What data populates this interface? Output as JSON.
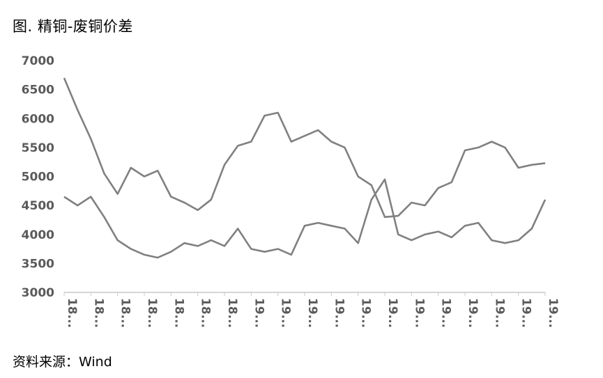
{
  "title": "图. 精铜-废铜价差",
  "source": "资料来源：Wind",
  "chart_data": {
    "type": "line",
    "title": "图. 精铜-废铜价差",
    "xlabel": "",
    "ylabel": "",
    "ylim": [
      3000,
      7000
    ],
    "yticks": [
      3000,
      3500,
      4000,
      4500,
      5000,
      5500,
      6000,
      6500,
      7000
    ],
    "ytick_labels": [
      "3000",
      "3500",
      "4000",
      "4500",
      "5000",
      "5500",
      "6000",
      "6500",
      "7000"
    ],
    "xtick_labels": [
      "18...",
      "18...",
      "18...",
      "18...",
      "18...",
      "18...",
      "18...",
      "19...",
      "19...",
      "19...",
      "19...",
      "19...",
      "19...",
      "19...",
      "19...",
      "19...",
      "19...",
      "19...",
      "19..."
    ],
    "grid": false,
    "legend": "none",
    "line_color": "#808080",
    "series": [
      {
        "x": [
          0,
          0.5,
          1,
          1.5,
          2,
          2.5,
          3,
          3.5,
          4,
          4.5,
          5,
          5.5,
          6,
          6.5,
          7,
          7.5,
          8,
          8.5,
          9,
          9.5,
          10,
          10.5,
          11,
          11.5,
          12,
          12.5,
          13,
          13.5,
          14,
          14.5,
          15,
          15.5,
          16,
          16.5,
          17,
          17.5,
          18
        ],
        "values": [
          6700,
          6150,
          5650,
          5050,
          4700,
          5150,
          5000,
          5100,
          4650,
          4550,
          4420,
          4600,
          5200,
          5530,
          5600,
          6050,
          6100,
          5600,
          5700,
          5800,
          5600,
          5500,
          5000,
          4850,
          4300,
          4320,
          4550,
          4500,
          4800,
          4900,
          5450,
          5500,
          5600,
          5500,
          5150,
          5200,
          5230
        ]
      },
      {
        "x": [
          0,
          0.5,
          1,
          1.5,
          2,
          2.5,
          3,
          3.5,
          4,
          4.5,
          5,
          5.5,
          6,
          6.5,
          7,
          7.5,
          8,
          8.5,
          9,
          9.5,
          10,
          10.5,
          11,
          11.5,
          12,
          12.5,
          13,
          13.5,
          14,
          14.5,
          15,
          15.5,
          16,
          16.5,
          17,
          17.5,
          18
        ],
        "values": [
          4650,
          4500,
          4650,
          4300,
          3900,
          3750,
          3650,
          3600,
          3700,
          3850,
          3800,
          3900,
          3800,
          4100,
          3750,
          3700,
          3750,
          3650,
          4150,
          4200,
          4150,
          4100,
          3850,
          4600,
          4950,
          4000,
          3900,
          4000,
          4050,
          3950,
          4150,
          4200,
          3900,
          3850,
          3900,
          4100,
          4600
        ]
      }
    ]
  }
}
